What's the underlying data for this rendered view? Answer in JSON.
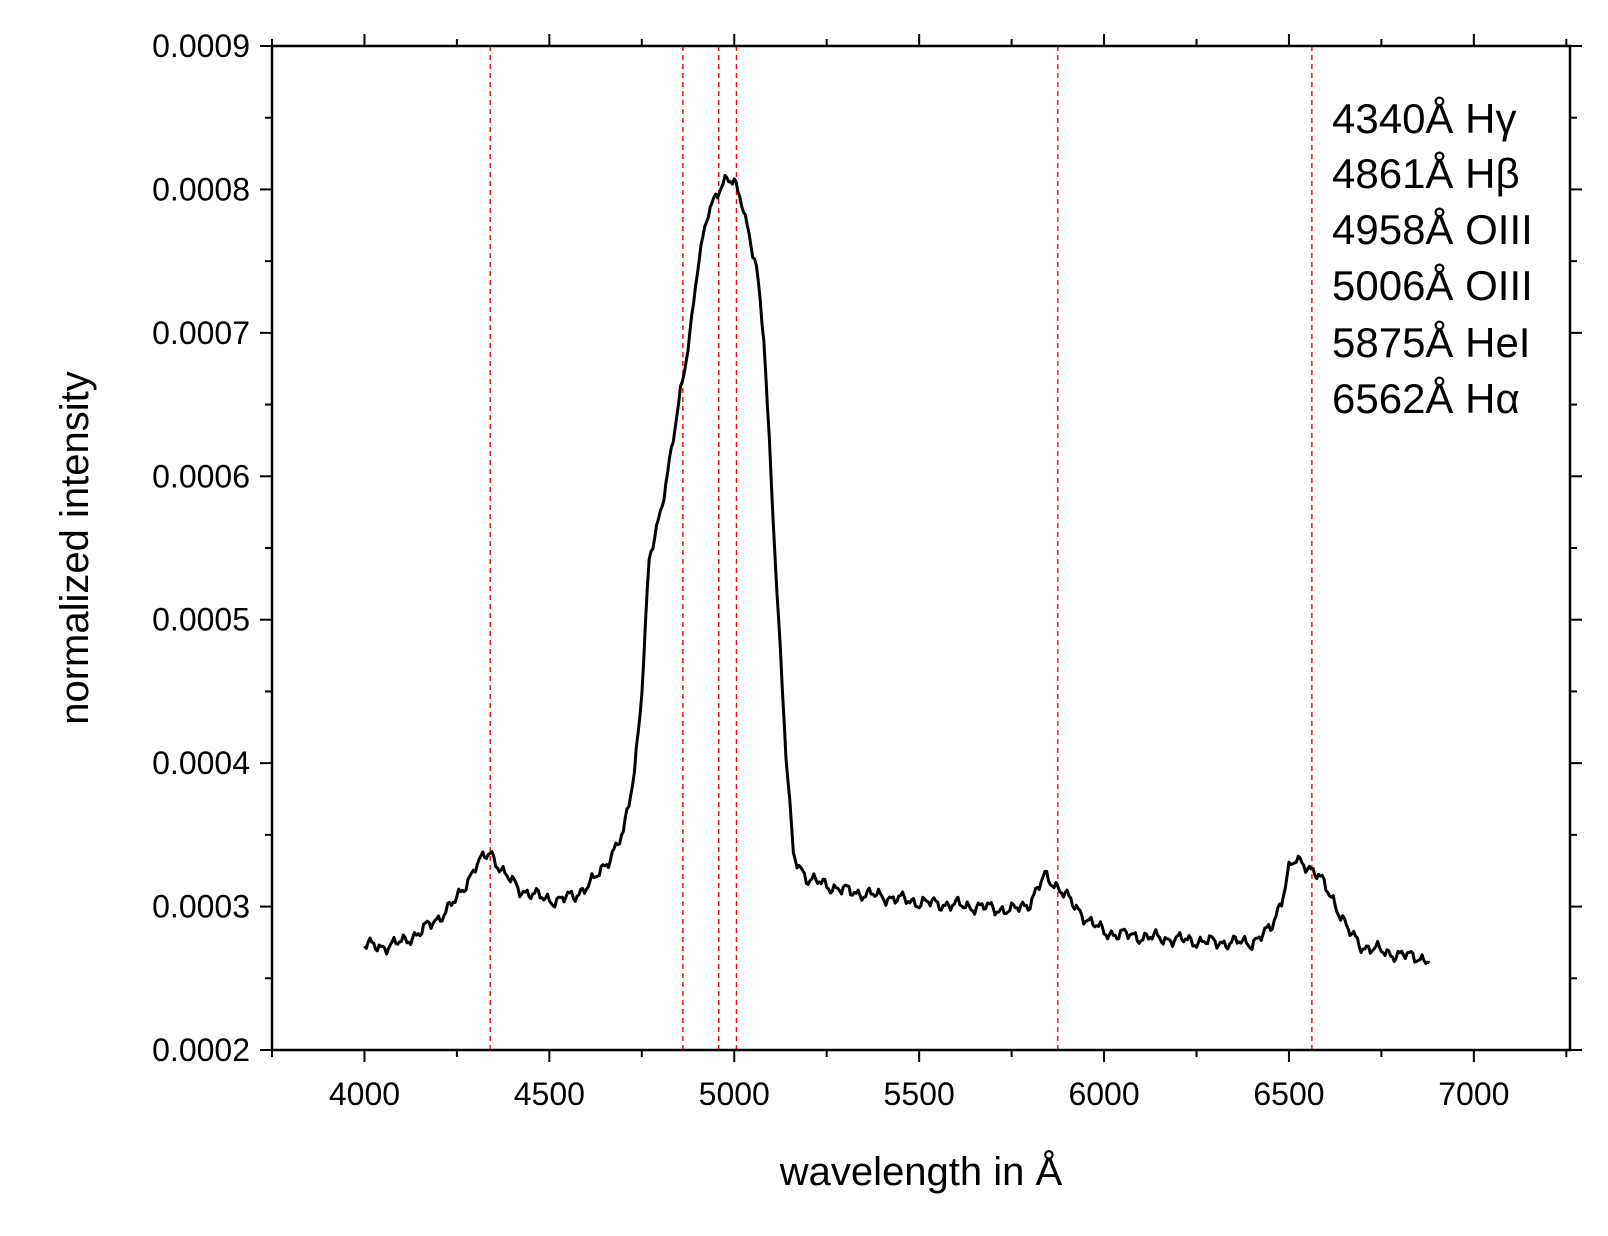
{
  "chart_data": {
    "type": "line",
    "xlabel": "wavelength in Å",
    "ylabel": "normalized intensity",
    "xlim": [
      3750,
      7260
    ],
    "ylim": [
      0.0002,
      0.0009
    ],
    "x_ticks": [
      4000,
      4500,
      5000,
      5500,
      6000,
      6500,
      7000
    ],
    "x_tick_labels": [
      "4000",
      "4500",
      "5000",
      "5500",
      "6000",
      "6500",
      "7000"
    ],
    "y_ticks": [
      0.0002,
      0.0003,
      0.0004,
      0.0005,
      0.0006,
      0.0007,
      0.0008,
      0.0009
    ],
    "y_tick_labels": [
      "0.0002",
      "0.0003",
      "0.0004",
      "0.0005",
      "0.0006",
      "0.0007",
      "0.0008",
      "0.0009"
    ],
    "grid": false,
    "legend_position": "top-right",
    "annotations": [
      "4340Å Hγ",
      "4861Å Hβ",
      "4958Å OIII",
      "5006Å OIII",
      "5875Å HeI",
      "6562Å Hα"
    ],
    "reference_lines": {
      "x": [
        4340,
        4861,
        4958,
        5006,
        5875,
        6562
      ],
      "color": "#ff0000",
      "style": "dashed"
    },
    "series": [
      {
        "color": "#000000",
        "x": [
          4000,
          4050,
          4100,
          4150,
          4200,
          4250,
          4300,
          4340,
          4380,
          4420,
          4470,
          4520,
          4570,
          4620,
          4660,
          4700,
          4730,
          4750,
          4770,
          4800,
          4830,
          4860,
          4880,
          4900,
          4930,
          4960,
          4980,
          5000,
          5020,
          5040,
          5060,
          5080,
          5100,
          5120,
          5140,
          5160,
          5200,
          5300,
          5400,
          5500,
          5600,
          5700,
          5750,
          5800,
          5840,
          5880,
          5920,
          5960,
          6000,
          6100,
          6200,
          6300,
          6400,
          6450,
          6480,
          6500,
          6520,
          6550,
          6580,
          6620,
          6660,
          6700,
          6750,
          6800,
          6850,
          6880
        ],
        "y": [
          0.000273,
          0.000272,
          0.000275,
          0.000282,
          0.000292,
          0.000305,
          0.000328,
          0.000338,
          0.000322,
          0.000312,
          0.000307,
          0.000304,
          0.000308,
          0.000318,
          0.000333,
          0.00035,
          0.000395,
          0.00045,
          0.00054,
          0.000575,
          0.000618,
          0.000665,
          0.0007,
          0.000745,
          0.000783,
          0.000802,
          0.000808,
          0.000803,
          0.000792,
          0.00077,
          0.000745,
          0.000695,
          0.000598,
          0.0005,
          0.000405,
          0.000335,
          0.000319,
          0.000311,
          0.000307,
          0.000303,
          0.000301,
          0.000299,
          0.000297,
          0.000303,
          0.000321,
          0.000313,
          0.0003,
          0.00029,
          0.000282,
          0.000279,
          0.000277,
          0.000275,
          0.000275,
          0.000284,
          0.000305,
          0.000326,
          0.000332,
          0.000329,
          0.000321,
          0.000305,
          0.000283,
          0.000272,
          0.000269,
          0.000266,
          0.000265,
          0.000262
        ]
      }
    ]
  }
}
